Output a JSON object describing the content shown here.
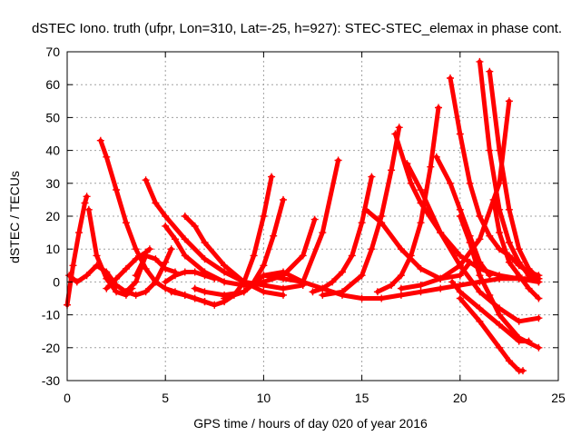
{
  "chart_data": {
    "type": "scatter",
    "title": "dSTEC Iono. truth (ufpr, Lon=310, Lat=-25, h=927): STEC-STEC_elemax in phase cont.",
    "xlabel": "GPS time / hours of day 020 of year 2016",
    "ylabel": "dSTEC  / TECUs",
    "xlim": [
      0,
      25
    ],
    "ylim": [
      -30,
      70
    ],
    "xticks": [
      0,
      5,
      10,
      15,
      20,
      25
    ],
    "yticks": [
      -30,
      -20,
      -10,
      0,
      10,
      20,
      30,
      40,
      50,
      60,
      70
    ],
    "grid": true,
    "marker": "plus",
    "color": "#ff0000",
    "series": [
      {
        "x": [
          0.0,
          0.3,
          0.6,
          0.9,
          1.0
        ],
        "y": [
          -7,
          5,
          15,
          24,
          26
        ]
      },
      {
        "x": [
          0.1,
          0.5,
          1.0,
          1.5,
          2.0,
          2.5,
          3.0,
          3.5,
          4.0
        ],
        "y": [
          2,
          0,
          2,
          5,
          3,
          -1,
          -3,
          0,
          8
        ]
      },
      {
        "x": [
          1.1,
          1.5,
          2.0,
          2.5,
          3.0,
          3.3
        ],
        "y": [
          22,
          8,
          1,
          -3,
          -4,
          -2
        ]
      },
      {
        "x": [
          1.7,
          2.0,
          2.5,
          3.0,
          3.5,
          4.0,
          4.5
        ],
        "y": [
          43,
          38,
          28,
          18,
          10,
          4,
          0
        ]
      },
      {
        "x": [
          2.0,
          2.5,
          3.0,
          3.5,
          4.0,
          4.2
        ],
        "y": [
          -2,
          1,
          4,
          7,
          9,
          10
        ]
      },
      {
        "x": [
          3.0,
          3.5,
          4.0,
          4.5,
          5.0,
          5.3
        ],
        "y": [
          -3,
          -4,
          -3,
          0,
          6,
          10
        ]
      },
      {
        "x": [
          3.5,
          4.0,
          4.5,
          5.0,
          5.5
        ],
        "y": [
          2,
          8,
          7,
          4,
          3
        ]
      },
      {
        "x": [
          4.0,
          4.5,
          5.0,
          6.0,
          7.0,
          8.0,
          9.0,
          10.0,
          11.0,
          12.0
        ],
        "y": [
          31,
          24,
          20,
          13,
          7,
          3,
          0,
          -1,
          -2,
          -1
        ]
      },
      {
        "x": [
          4.5,
          5.0,
          5.5,
          6.0,
          7.0,
          7.5
        ],
        "y": [
          0,
          -2,
          -3,
          -4,
          -6,
          -7
        ]
      },
      {
        "x": [
          5.0,
          5.5,
          6.0,
          7.0,
          8.0,
          9.0,
          10.0,
          11.0,
          12.0,
          12.6
        ],
        "y": [
          17,
          13,
          8,
          3,
          0,
          -1,
          0,
          2,
          8,
          19
        ]
      },
      {
        "x": [
          5.0,
          5.5,
          6.0,
          6.5,
          7.0,
          7.5
        ],
        "y": [
          0,
          2,
          3,
          3,
          2,
          1
        ]
      },
      {
        "x": [
          5.3,
          6.0,
          6.5,
          7.0,
          7.5,
          8.0,
          8.5,
          9.0,
          9.5,
          10.0,
          10.4
        ],
        "y": [
          -3,
          -4,
          -5,
          -6,
          -7,
          -6,
          -4,
          0,
          8,
          20,
          32
        ]
      },
      {
        "x": [
          6.0,
          6.5,
          7.0,
          8.0,
          9.0,
          10.0,
          11.0
        ],
        "y": [
          20,
          17,
          12,
          5,
          0,
          -3,
          -4
        ]
      },
      {
        "x": [
          6.5,
          7.0,
          8.0,
          9.0,
          9.5,
          10.0,
          10.5,
          11.0
        ],
        "y": [
          -2,
          -3,
          -4,
          -3,
          0,
          5,
          14,
          25
        ]
      },
      {
        "x": [
          8.0,
          9.0,
          10.0,
          11.0,
          12.0,
          13.0,
          13.8
        ],
        "y": [
          -5,
          -3,
          2,
          3,
          0,
          15,
          37
        ]
      },
      {
        "x": [
          10.0,
          11.0,
          12.0,
          13.0,
          14.0,
          15.0,
          16.0,
          17.0,
          18.0,
          19.0,
          20.0,
          21.0,
          22.0,
          23.0,
          24.0
        ],
        "y": [
          2,
          1,
          0,
          -2,
          -4,
          -5,
          -5,
          -4,
          -3,
          -2,
          -1,
          0,
          1,
          1,
          0
        ]
      },
      {
        "x": [
          12.5,
          13.0,
          13.5,
          14.0,
          14.5,
          15.0,
          15.5
        ],
        "y": [
          -3,
          -2,
          0,
          3,
          8,
          18,
          32
        ]
      },
      {
        "x": [
          13.0,
          14.0,
          15.0,
          15.5,
          16.0,
          16.5,
          16.9
        ],
        "y": [
          -4,
          -3,
          2,
          10,
          20,
          34,
          47
        ]
      },
      {
        "x": [
          15.2,
          16.0,
          17.0,
          18.0,
          19.0,
          20.0,
          20.5
        ],
        "y": [
          22,
          18,
          10,
          4,
          1,
          2,
          6
        ]
      },
      {
        "x": [
          15.8,
          16.5,
          17.0,
          17.5,
          18.0,
          18.5,
          18.9
        ],
        "y": [
          -3,
          -1,
          2,
          8,
          18,
          35,
          53
        ]
      },
      {
        "x": [
          16.7,
          17.5,
          18.0,
          19.0,
          20.0,
          21.0,
          22.0,
          23.0,
          24.0
        ],
        "y": [
          45,
          30,
          24,
          15,
          8,
          4,
          2,
          1,
          1
        ]
      },
      {
        "x": [
          17.0,
          18.0,
          19.0,
          20.0,
          21.0,
          22.0,
          22.5
        ],
        "y": [
          -2,
          -1,
          1,
          5,
          13,
          30,
          55
        ]
      },
      {
        "x": [
          17.3,
          18.0,
          19.0,
          20.0,
          21.0,
          22.0,
          23.0,
          24.0
        ],
        "y": [
          36,
          28,
          15,
          5,
          -3,
          -8,
          -12,
          -11
        ]
      },
      {
        "x": [
          18.8,
          19.5,
          20.0,
          20.5,
          21.0,
          21.5
        ],
        "y": [
          38,
          30,
          22,
          14,
          6,
          2
        ]
      },
      {
        "x": [
          19.5,
          20.0,
          20.5,
          21.0,
          21.5,
          22.0,
          22.5,
          23.0,
          23.5,
          24.0
        ],
        "y": [
          62,
          45,
          30,
          20,
          14,
          10,
          8,
          5,
          3,
          2
        ]
      },
      {
        "x": [
          19.6,
          20.0,
          21.0,
          22.0,
          23.0,
          23.5
        ],
        "y": [
          0,
          -3,
          -8,
          -13,
          -18,
          -18
        ]
      },
      {
        "x": [
          20.0,
          20.5,
          21.0,
          21.5,
          22.0,
          23.0,
          24.0
        ],
        "y": [
          20,
          12,
          2,
          -4,
          -10,
          -17,
          -20
        ]
      },
      {
        "x": [
          20.0,
          21.0,
          22.0,
          22.5,
          23.0,
          23.2
        ],
        "y": [
          -5,
          -12,
          -20,
          -24,
          -27,
          -27
        ]
      },
      {
        "x": [
          21.0,
          21.5,
          22.0,
          22.5,
          23.0,
          23.5,
          24.0
        ],
        "y": [
          67,
          40,
          22,
          12,
          6,
          2,
          0
        ]
      },
      {
        "x": [
          21.5,
          22.0,
          22.5,
          23.0,
          23.5,
          24.0
        ],
        "y": [
          64,
          40,
          22,
          10,
          4,
          1
        ]
      },
      {
        "x": [
          21.7,
          22.0,
          22.5,
          23.0,
          23.5,
          24.0
        ],
        "y": [
          25,
          15,
          6,
          2,
          -2,
          -5
        ]
      }
    ]
  }
}
